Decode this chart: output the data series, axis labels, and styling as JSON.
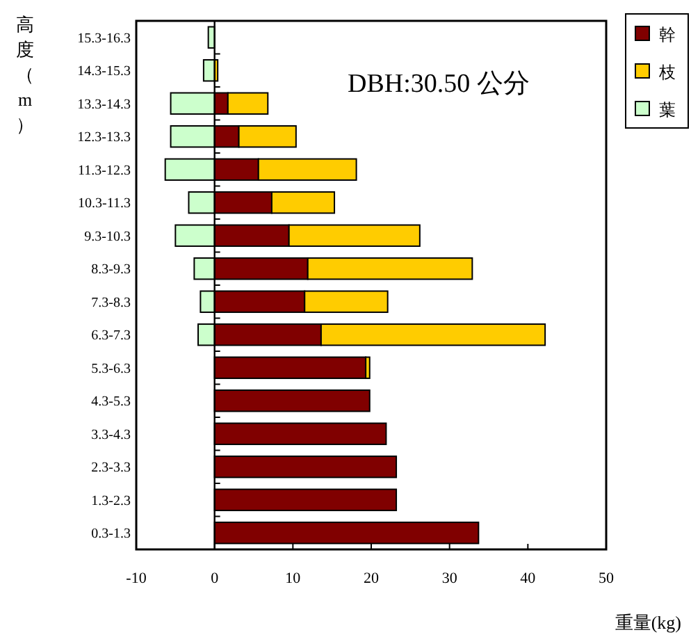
{
  "chart_data": {
    "type": "bar",
    "orientation": "horizontal",
    "stacked": true,
    "ylabel": "高度（m）",
    "xlabel": "重量(kg)",
    "annotations": [
      "DBH:30.50 公分"
    ],
    "legend": "top right",
    "xlim": [
      -10,
      50
    ],
    "xticks": [
      -10,
      0,
      10,
      20,
      30,
      40,
      50
    ],
    "categories": [
      "15.3-16.3",
      "14.3-15.3",
      "13.3-14.3",
      "12.3-13.3",
      "11.3-12.3",
      "10.3-11.3",
      "9.3-10.3",
      "8.3-9.3",
      "7.3-8.3",
      "6.3-7.3",
      "5.3-6.3",
      "4.3-5.3",
      "3.3-4.3",
      "2.3-3.3",
      "1.3-2.3",
      "0.3-1.3"
    ],
    "series": [
      {
        "name": "幹",
        "color": "#800000",
        "values": [
          null,
          null,
          1.7,
          3.1,
          5.6,
          7.3,
          9.5,
          11.9,
          11.5,
          13.6,
          19.3,
          19.8,
          21.9,
          23.2,
          23.2,
          33.7
        ]
      },
      {
        "name": "枝",
        "color": "#ffcc00",
        "values": [
          null,
          0.4,
          5.1,
          7.3,
          12.5,
          8.0,
          16.7,
          21.0,
          10.6,
          28.6,
          0.5,
          null,
          null,
          null,
          null,
          null
        ]
      },
      {
        "name": "葉",
        "color": "#ccffcc",
        "values": [
          -0.8,
          -1.4,
          -5.6,
          -5.6,
          -6.3,
          -3.3,
          -5.0,
          -2.6,
          -1.8,
          -2.1,
          null,
          null,
          null,
          null,
          null,
          null
        ]
      }
    ]
  }
}
